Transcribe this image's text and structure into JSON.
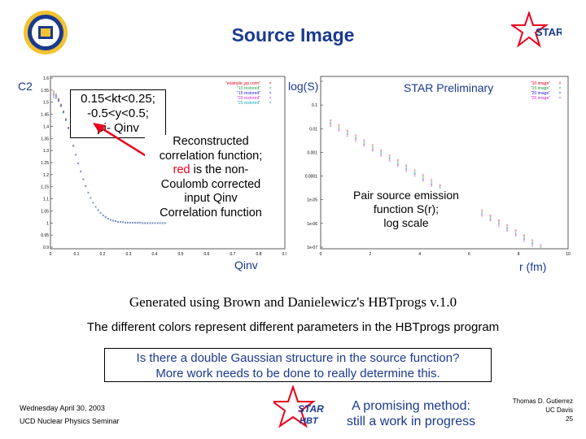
{
  "slide": {
    "title": "Source Image",
    "footer_date": "Wednesday April 30, 2003",
    "footer_seminar": "UCD Nuclear Physics Seminar",
    "author": "Thomas D. Gutierrez",
    "affiliation": "UC Davis",
    "page_number": "25"
  },
  "left_plot": {
    "ylabel": "C2",
    "xlabel": "Qinv",
    "y_ticks": [
      "1.6",
      "1.55",
      "1.5",
      "1.45",
      "1.4",
      "1.35",
      "1.3",
      "1.25",
      "1.2",
      "1.15",
      "1.1",
      "1.05",
      "1",
      "0.95",
      "0.9"
    ],
    "x_ticks": [
      "0",
      "0.1",
      "0.2",
      "0.3",
      "0.4",
      "0.5",
      "0.6",
      "0.7",
      "0.8",
      "0.9"
    ],
    "legend": [
      "\"example_pp.corin\"",
      "\"10 restored\"",
      "\"15 restored\"",
      "\"20 restored\"",
      "\"25 restored\""
    ],
    "cuts_text": [
      "0.15<kt<0.25;",
      "-0.5<y<0.5;",
      "pi- Qinv"
    ],
    "annotation_lines": [
      "Reconstructed",
      "correlation function;",
      "is the non-",
      "Coulomb corrected",
      "input Qinv",
      "Correlation function"
    ],
    "annotation_red_word": "red"
  },
  "right_plot": {
    "ylabel": "log(S)",
    "xlabel": "r (fm)",
    "y_ticks": [
      "1",
      "0.1",
      "0.01",
      "0.001",
      "0.0001",
      "1e-05",
      "1e-06",
      "1e-07"
    ],
    "x_ticks": [
      "0",
      "2",
      "4",
      "6",
      "8",
      "10"
    ],
    "legend": [
      "\"10 image\"",
      "\"15 image\"",
      "\"20 image\"",
      "\"25 image\""
    ],
    "preliminary": "STAR Preliminary",
    "annotation_lines": [
      "Pair source emission",
      "function S(r);",
      "log scale"
    ]
  },
  "hbtprogs_line": "Generated using Brown and Danielewicz's HBTprogs v.1.0",
  "colors_line": "The different colors represent different parameters in the HBTprogs program",
  "question_lines": [
    "Is there a double Gaussian structure in the source function?",
    "More work needs to be done to really determine this."
  ],
  "promising_lines": [
    "A promising method:",
    "still a work in progress"
  ],
  "logos": {
    "star_text": "STAR",
    "hbt_star_text": "STAR",
    "hbt_text": "HBT"
  },
  "colors": {
    "title_blue": "#1a3a8f",
    "star_red": "#e8001c",
    "series_red": "#e8001c",
    "series_green": "#1f9e3a",
    "series_blue": "#2424d8",
    "series_magenta": "#d02ad0",
    "series_cyan": "#18a8b8"
  }
}
